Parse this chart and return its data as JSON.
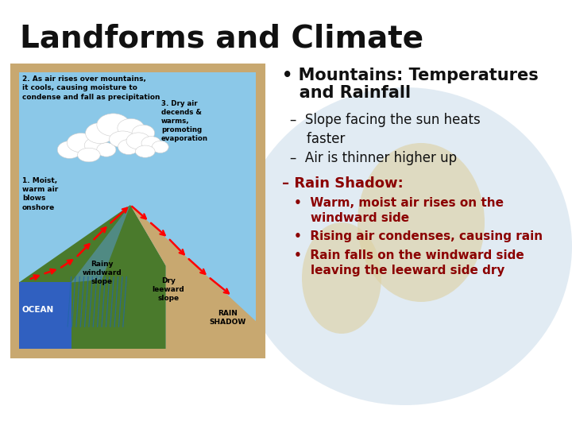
{
  "title": "Landforms and Climate",
  "title_fontsize": 28,
  "title_fontweight": "bold",
  "title_color": "#111111",
  "bg_color": "#ffffff",
  "bullet_header_line1": "• Mountains: Temperatures",
  "bullet_header_line2": "   and Rainfall",
  "bullet_header_fontsize": 15,
  "bullet_header_fontweight": "bold",
  "bullet_header_color": "#111111",
  "dash_items": [
    [
      "– ",
      "Slope facing the sun heats\n    faster"
    ],
    [
      "– ",
      "Air is thinner higher up"
    ]
  ],
  "dash_color": "#111111",
  "dash_fontsize": 12,
  "rain_shadow_label": "– Rain Shadow:",
  "rain_shadow_color": "#8B0000",
  "rain_shadow_fontsize": 13,
  "rain_shadow_fontweight": "bold",
  "sub_bullets": [
    "•  Warm, moist air rises on the\n    windward side",
    "•  Rising air condenses, causing rain",
    "•  Rain falls on the windward side\n    leaving the leeward side dry"
  ],
  "sub_bullet_color": "#8B0000",
  "sub_bullet_fontsize": 11,
  "sub_bullet_fontweight": "bold",
  "image_border_color": "#c8a870",
  "sky_color": "#8BC8E8",
  "ocean_color": "#3060C0",
  "grass_color": "#4a7a2c",
  "dryland_color": "#c8a870",
  "rain_blue": "#4499CC",
  "globe_color": "#c5d8e8",
  "globe_land_color": "#ddd0a0"
}
